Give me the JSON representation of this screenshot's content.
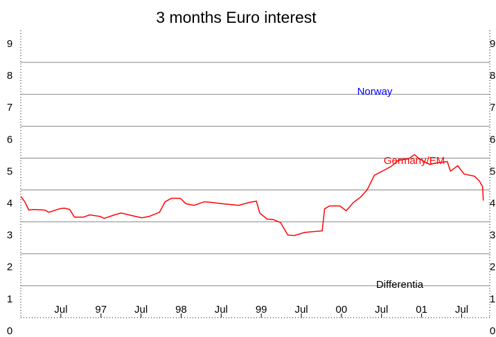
{
  "chart_data": {
    "type": "line",
    "title": "3 months Euro interest",
    "x": [
      1996.0,
      1996.05,
      1996.1,
      1996.16,
      1996.3,
      1996.35,
      1996.48,
      1996.54,
      1996.61,
      1996.67,
      1996.78,
      1996.86,
      1996.99,
      1997.04,
      1997.17,
      1997.25,
      1997.38,
      1997.51,
      1997.6,
      1997.73,
      1997.8,
      1997.88,
      1997.99,
      1998.06,
      1998.16,
      1998.29,
      1998.38,
      1998.51,
      1998.72,
      1998.85,
      1998.94,
      1998.98,
      1999.07,
      1999.15,
      1999.24,
      1999.33,
      1999.41,
      1999.54,
      1999.76,
      1999.79,
      1999.85,
      1999.98,
      2000.06,
      2000.15,
      2000.24,
      2000.32,
      2000.41,
      2000.54,
      2000.62,
      2000.71,
      2000.84,
      2000.91,
      2000.97,
      2001.1,
      2001.19,
      2001.32,
      2001.36,
      2001.45,
      2001.53,
      2001.66,
      2001.72,
      2001.76,
      2001.77
    ],
    "series": [
      {
        "name": "Germany/EM",
        "color": "#ff0000",
        "values": [
          3.8,
          3.63,
          3.37,
          3.39,
          3.37,
          3.3,
          3.41,
          3.43,
          3.39,
          3.15,
          3.15,
          3.22,
          3.17,
          3.11,
          3.22,
          3.28,
          3.2,
          3.13,
          3.17,
          3.3,
          3.63,
          3.74,
          3.74,
          3.57,
          3.52,
          3.63,
          3.61,
          3.57,
          3.52,
          3.61,
          3.65,
          3.28,
          3.09,
          3.07,
          2.98,
          2.59,
          2.57,
          2.67,
          2.72,
          3.41,
          3.5,
          3.5,
          3.35,
          3.61,
          3.78,
          4.0,
          4.46,
          4.63,
          4.74,
          4.93,
          4.98,
          5.11,
          4.98,
          4.8,
          4.85,
          4.89,
          4.59,
          4.76,
          4.5,
          4.43,
          4.28,
          4.11,
          3.67
        ]
      }
    ],
    "annotations": [
      {
        "text": "Norway",
        "color": "#0000ff"
      },
      {
        "text": "Germany/EM",
        "color": "#ff0000"
      },
      {
        "text": "Differentia",
        "color": "#000000"
      }
    ],
    "xlim": [
      1996.0,
      2001.85
    ],
    "xticks": [
      {
        "value": 1996.5,
        "label": "Jul"
      },
      {
        "value": 1997,
        "label": "97"
      },
      {
        "value": 1997.5,
        "label": "Jul"
      },
      {
        "value": 1998,
        "label": "98"
      },
      {
        "value": 1998.5,
        "label": "Jul"
      },
      {
        "value": 1999,
        "label": "99"
      },
      {
        "value": 1999.5,
        "label": "Jul"
      },
      {
        "value": 2000,
        "label": "00"
      },
      {
        "value": 2000.5,
        "label": "Jul"
      },
      {
        "value": 2001,
        "label": "01"
      },
      {
        "value": 2001.5,
        "label": "Jul"
      }
    ],
    "ylim": [
      0,
      9
    ],
    "yticks": [
      0,
      1,
      2,
      3,
      4,
      5,
      6,
      7,
      8,
      9
    ],
    "grid": true
  }
}
